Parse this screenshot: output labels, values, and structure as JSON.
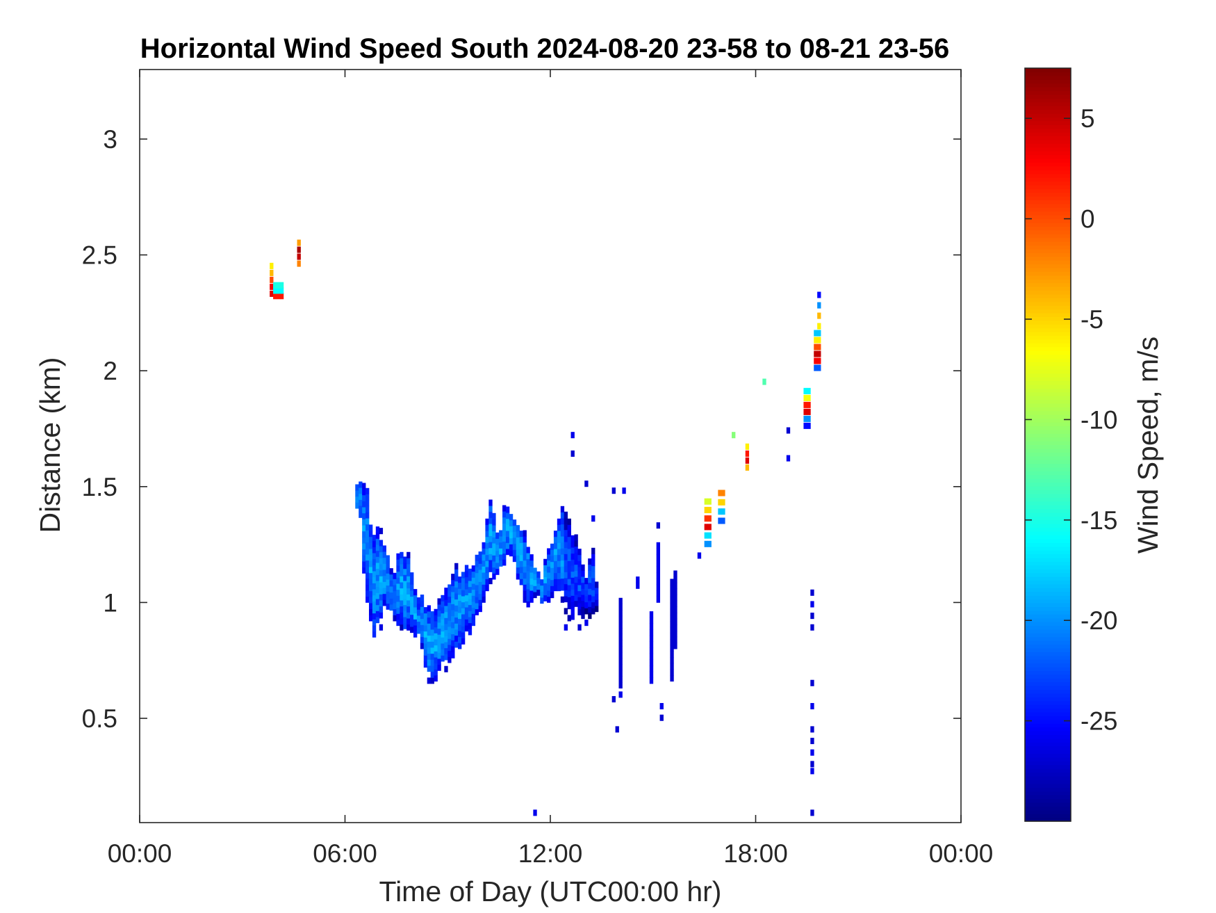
{
  "chart_data": {
    "type": "heatmap",
    "title": "Horizontal Wind Speed South 2024-08-20 23-58 to 08-21 23-56",
    "xlabel": "Time of Day (UTC00:00 hr)",
    "ylabel": "Distance (km)",
    "colorbar_label": "Wind Speed, m/s",
    "xlim": [
      0,
      24
    ],
    "ylim": [
      0.05,
      3.3
    ],
    "x_ticks": [
      0,
      6,
      12,
      18,
      24
    ],
    "x_tick_labels": [
      "00:00",
      "06:00",
      "12:00",
      "18:00",
      "00:00"
    ],
    "y_ticks": [
      0.5,
      1,
      1.5,
      2,
      2.5,
      3
    ],
    "y_tick_labels": [
      "0.5",
      "1",
      "1.5",
      "2",
      "2.5",
      "3"
    ],
    "clim": [
      -30,
      7.5
    ],
    "colorbar_ticks": [
      5,
      0,
      -5,
      -10,
      -15,
      -20,
      -25
    ],
    "colorbar_tick_labels": [
      "5",
      "0",
      "-5",
      "-10",
      "-15",
      "-20",
      "-25"
    ],
    "colormap": "jet",
    "grid": false,
    "cell_size": {
      "dt_hr": 0.1,
      "dz_km": 0.026
    },
    "patches": [
      {
        "t0": 3.8,
        "t1": 3.9,
        "z0": 2.32,
        "z1": 2.47,
        "profile": [
          4,
          3,
          0,
          -4,
          -6
        ]
      },
      {
        "t0": 3.9,
        "t1": 4.2,
        "z0": 2.31,
        "z1": 2.38,
        "profile": [
          2,
          -16,
          -15
        ]
      },
      {
        "t0": 4.6,
        "t1": 4.7,
        "z0": 2.45,
        "z1": 2.57,
        "profile": [
          -2,
          5,
          6,
          -3
        ]
      },
      {
        "t0": 16.5,
        "t1": 16.7,
        "z0": 1.24,
        "z1": 1.46,
        "profile": [
          -20,
          -17,
          4,
          1,
          -5,
          -8
        ]
      },
      {
        "t0": 16.9,
        "t1": 17.1,
        "z0": 1.34,
        "z1": 1.5,
        "profile": [
          -22,
          -18,
          -5,
          -2
        ]
      },
      {
        "t0": 17.7,
        "t1": 17.8,
        "z0": 1.57,
        "z1": 1.69,
        "profile": [
          -4,
          4,
          2,
          -6
        ]
      },
      {
        "t0": 19.4,
        "t1": 19.6,
        "z0": 1.75,
        "z1": 1.93,
        "profile": [
          -25,
          -20,
          4,
          2,
          -7,
          -16
        ]
      },
      {
        "t0": 19.7,
        "t1": 19.9,
        "z0": 2.0,
        "z1": 2.18,
        "profile": [
          -22,
          3,
          5,
          0,
          -6,
          -18
        ]
      },
      {
        "t0": 19.8,
        "t1": 19.9,
        "z0": 2.18,
        "z1": 2.36,
        "profile": [
          -6,
          -4,
          -20,
          -25
        ]
      }
    ],
    "cells": [
      [
        17.3,
        1.71,
        -11
      ],
      [
        18.2,
        1.94,
        -13
      ],
      [
        11.5,
        0.08,
        -26
      ],
      [
        19.6,
        0.08,
        -27
      ],
      [
        12.6,
        1.63,
        -27
      ],
      [
        12.6,
        1.71,
        -26
      ],
      [
        13.0,
        1.5,
        -27
      ],
      [
        13.2,
        1.35,
        -26
      ],
      [
        13.8,
        1.47,
        -27
      ],
      [
        14.1,
        1.47,
        -26
      ],
      [
        18.9,
        1.73,
        -27
      ],
      [
        18.9,
        1.61,
        -26
      ],
      [
        15.1,
        1.32,
        -27
      ],
      [
        16.3,
        1.19,
        -26
      ],
      [
        13.9,
        0.44,
        -27
      ],
      [
        13.8,
        0.57,
        -27
      ],
      [
        14.0,
        0.59,
        -26
      ],
      [
        15.2,
        0.49,
        -27
      ],
      [
        15.2,
        0.54,
        -26
      ],
      [
        19.6,
        1.03,
        -27
      ],
      [
        19.6,
        0.98,
        -26
      ],
      [
        19.6,
        0.93,
        -27
      ],
      [
        19.6,
        0.88,
        -27
      ],
      [
        19.6,
        0.64,
        -27
      ],
      [
        19.6,
        0.54,
        -26
      ],
      [
        19.6,
        0.44,
        -27
      ],
      [
        19.6,
        0.39,
        -27
      ],
      [
        19.6,
        0.34,
        -26
      ],
      [
        19.6,
        0.29,
        -27
      ],
      [
        19.6,
        0.26,
        -26
      ],
      [
        12.4,
        0.88,
        -26
      ],
      [
        12.8,
        0.88,
        -27
      ],
      [
        13.0,
        0.9,
        -26
      ]
    ],
    "strokes": [
      {
        "t": 14.0,
        "z0": 0.63,
        "z1": 1.02,
        "v": -27
      },
      {
        "t": 15.1,
        "z0": 1.0,
        "z1": 1.24,
        "v": -26
      },
      {
        "t": 15.6,
        "z0": 0.8,
        "z1": 1.12,
        "v": -27
      },
      {
        "t": 14.9,
        "z0": 0.65,
        "z1": 0.95,
        "v": -26
      },
      {
        "t": 15.5,
        "z0": 0.66,
        "z1": 1.1,
        "v": -27
      },
      {
        "t": 14.5,
        "z0": 1.06,
        "z1": 1.1,
        "v": -26
      }
    ],
    "mass": {
      "v_lo": -27.5,
      "v_hi": -16.5,
      "columns": [
        [
          6.3,
          1.38,
          1.5
        ],
        [
          6.4,
          1.34,
          1.53
        ],
        [
          6.5,
          1.1,
          1.5
        ],
        [
          6.6,
          1.0,
          1.48
        ],
        [
          6.7,
          0.92,
          1.35
        ],
        [
          6.8,
          0.85,
          1.3
        ],
        [
          6.9,
          0.86,
          1.32
        ],
        [
          7.0,
          0.88,
          1.3
        ],
        [
          7.1,
          0.96,
          1.26
        ],
        [
          7.2,
          0.97,
          1.2
        ],
        [
          7.3,
          0.94,
          1.13
        ],
        [
          7.4,
          0.92,
          1.12
        ],
        [
          7.5,
          0.9,
          1.19
        ],
        [
          7.6,
          0.88,
          1.22
        ],
        [
          7.7,
          0.86,
          1.2
        ],
        [
          7.8,
          0.88,
          1.2
        ],
        [
          7.9,
          0.87,
          1.12
        ],
        [
          8.0,
          0.85,
          1.05
        ],
        [
          8.1,
          0.84,
          1.0
        ],
        [
          8.2,
          0.8,
          1.02
        ],
        [
          8.3,
          0.72,
          1.0
        ],
        [
          8.4,
          0.65,
          0.98
        ],
        [
          8.5,
          0.65,
          0.96
        ],
        [
          8.6,
          0.66,
          0.95
        ],
        [
          8.7,
          0.68,
          1.0
        ],
        [
          8.8,
          0.72,
          1.03
        ],
        [
          8.9,
          0.7,
          1.04
        ],
        [
          9.0,
          0.74,
          1.08
        ],
        [
          9.1,
          0.76,
          1.1
        ],
        [
          9.2,
          0.78,
          1.15
        ],
        [
          9.3,
          0.8,
          1.12
        ],
        [
          9.4,
          0.82,
          1.13
        ],
        [
          9.5,
          0.85,
          1.16
        ],
        [
          9.6,
          0.86,
          1.15
        ],
        [
          9.7,
          0.9,
          1.16
        ],
        [
          9.8,
          0.92,
          1.2
        ],
        [
          9.9,
          0.96,
          1.24
        ],
        [
          10.0,
          1.0,
          1.28
        ],
        [
          10.1,
          1.05,
          1.36
        ],
        [
          10.2,
          1.08,
          1.45
        ],
        [
          10.3,
          1.1,
          1.38
        ],
        [
          10.4,
          1.12,
          1.3
        ],
        [
          10.5,
          1.13,
          1.32
        ],
        [
          10.6,
          1.16,
          1.4
        ],
        [
          10.7,
          1.18,
          1.43
        ],
        [
          10.8,
          1.2,
          1.38
        ],
        [
          10.9,
          1.15,
          1.35
        ],
        [
          11.0,
          1.1,
          1.34
        ],
        [
          11.1,
          1.05,
          1.32
        ],
        [
          11.2,
          1.0,
          1.3
        ],
        [
          11.3,
          0.98,
          1.26
        ],
        [
          11.4,
          1.0,
          1.2
        ],
        [
          11.5,
          1.02,
          1.15
        ],
        [
          11.6,
          1.03,
          1.12
        ],
        [
          11.7,
          0.97,
          1.1
        ],
        [
          11.8,
          0.98,
          1.18
        ],
        [
          11.9,
          1.0,
          1.22
        ],
        [
          12.0,
          1.02,
          1.25
        ],
        [
          12.1,
          1.05,
          1.3
        ],
        [
          12.2,
          1.05,
          1.38
        ],
        [
          12.3,
          1.0,
          1.4
        ],
        [
          12.4,
          0.95,
          1.38
        ],
        [
          12.5,
          0.92,
          1.35
        ],
        [
          12.6,
          0.9,
          1.3
        ],
        [
          12.7,
          0.93,
          1.28
        ],
        [
          12.8,
          0.92,
          1.24
        ],
        [
          12.9,
          0.93,
          1.18
        ],
        [
          13.0,
          0.95,
          1.1
        ],
        [
          13.1,
          0.93,
          1.2
        ],
        [
          13.2,
          0.95,
          1.22
        ],
        [
          13.3,
          0.96,
          1.08
        ]
      ]
    }
  }
}
